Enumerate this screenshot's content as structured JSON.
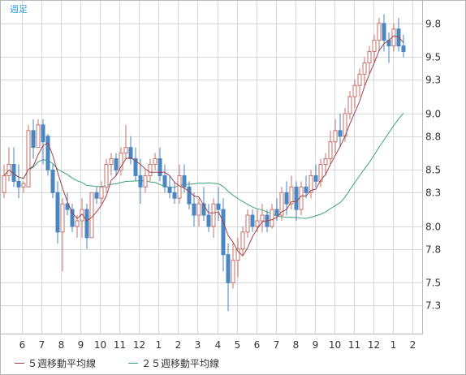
{
  "chart_data": {
    "type": "candlestick",
    "period_label": "週足",
    "y_ticks": [
      7.3,
      7.5,
      7.8,
      8.0,
      8.3,
      8.5,
      8.8,
      9.0,
      9.3,
      9.5,
      9.8
    ],
    "ylim": [
      7.05,
      10.0
    ],
    "x_ticks": [
      "6",
      "7",
      "8",
      "9",
      "10",
      "11",
      "12",
      "1",
      "2",
      "3",
      "4",
      "5",
      "6",
      "7",
      "8",
      "9",
      "10",
      "11",
      "12",
      "1",
      "2"
    ],
    "grid": true,
    "legend_position": "bottom-left",
    "legend": [
      {
        "label": "５週移動平均線",
        "color": "#a2424b"
      },
      {
        "label": "２５週移動平均線",
        "color": "#3aa37a"
      }
    ],
    "colors": {
      "up": "#c4716b",
      "down": "#4a86bf"
    },
    "candles": [
      [
        8.3,
        8.55,
        8.25,
        8.45
      ],
      [
        8.45,
        8.7,
        8.4,
        8.55
      ],
      [
        8.55,
        8.7,
        8.35,
        8.4
      ],
      [
        8.4,
        8.55,
        8.25,
        8.35
      ],
      [
        8.35,
        8.4,
        8.3,
        8.38
      ],
      [
        8.35,
        8.9,
        8.35,
        8.85
      ],
      [
        8.85,
        8.95,
        8.6,
        8.7
      ],
      [
        8.7,
        8.95,
        8.7,
        8.9
      ],
      [
        8.9,
        8.95,
        8.55,
        8.75
      ],
      [
        8.8,
        8.82,
        8.45,
        8.5
      ],
      [
        8.5,
        8.55,
        8.25,
        8.3
      ],
      [
        8.3,
        8.4,
        7.85,
        7.95
      ],
      [
        7.95,
        8.25,
        7.6,
        8.2
      ],
      [
        8.2,
        8.3,
        8.1,
        8.15
      ],
      [
        8.15,
        8.2,
        7.95,
        8.0
      ],
      [
        8.0,
        8.1,
        7.9,
        8.05
      ],
      [
        8.05,
        8.25,
        7.9,
        8.15
      ],
      [
        8.15,
        8.2,
        7.8,
        7.9
      ],
      [
        7.9,
        8.3,
        7.9,
        8.3
      ],
      [
        8.3,
        8.35,
        8.2,
        8.25
      ],
      [
        8.25,
        8.4,
        8.2,
        8.35
      ],
      [
        8.35,
        8.6,
        8.3,
        8.55
      ],
      [
        8.55,
        8.65,
        8.45,
        8.6
      ],
      [
        8.6,
        8.65,
        8.45,
        8.5
      ],
      [
        8.5,
        8.7,
        8.45,
        8.65
      ],
      [
        8.65,
        8.9,
        8.6,
        8.7
      ],
      [
        8.7,
        8.8,
        8.55,
        8.6
      ],
      [
        8.6,
        8.7,
        8.4,
        8.45
      ],
      [
        8.45,
        8.6,
        8.2,
        8.35
      ],
      [
        8.35,
        8.5,
        8.3,
        8.45
      ],
      [
        8.45,
        8.6,
        8.4,
        8.55
      ],
      [
        8.55,
        8.65,
        8.5,
        8.6
      ],
      [
        8.6,
        8.7,
        8.4,
        8.45
      ],
      [
        8.45,
        8.55,
        8.3,
        8.35
      ],
      [
        8.35,
        8.45,
        8.25,
        8.3
      ],
      [
        8.3,
        8.4,
        8.2,
        8.25
      ],
      [
        8.25,
        8.55,
        8.2,
        8.45
      ],
      [
        8.45,
        8.55,
        8.3,
        8.35
      ],
      [
        8.35,
        8.4,
        8.15,
        8.2
      ],
      [
        8.2,
        8.3,
        8.0,
        8.1
      ],
      [
        8.1,
        8.25,
        8.0,
        8.2
      ],
      [
        8.2,
        8.35,
        8.05,
        8.1
      ],
      [
        8.1,
        8.2,
        7.95,
        8.0
      ],
      [
        8.0,
        8.25,
        7.9,
        8.2
      ],
      [
        8.2,
        8.35,
        8.05,
        8.15
      ],
      [
        8.15,
        8.25,
        7.6,
        7.75
      ],
      [
        7.75,
        7.85,
        7.25,
        7.5
      ],
      [
        7.5,
        7.85,
        7.45,
        7.7
      ],
      [
        7.7,
        7.9,
        7.55,
        7.8
      ],
      [
        7.8,
        8.0,
        7.75,
        7.95
      ],
      [
        7.95,
        8.15,
        7.9,
        8.1
      ],
      [
        8.1,
        8.15,
        7.95,
        8.0
      ],
      [
        8.0,
        8.15,
        7.95,
        8.05
      ],
      [
        8.05,
        8.2,
        7.95,
        8.1
      ],
      [
        8.1,
        8.15,
        7.95,
        8.0
      ],
      [
        8.0,
        8.2,
        7.98,
        8.15
      ],
      [
        8.15,
        8.25,
        8.05,
        8.1
      ],
      [
        8.1,
        8.35,
        8.05,
        8.3
      ],
      [
        8.3,
        8.4,
        8.1,
        8.2
      ],
      [
        8.2,
        8.45,
        8.15,
        8.35
      ],
      [
        8.35,
        8.4,
        8.05,
        8.15
      ],
      [
        8.15,
        8.4,
        8.1,
        8.35
      ],
      [
        8.35,
        8.45,
        8.25,
        8.3
      ],
      [
        8.3,
        8.5,
        8.25,
        8.45
      ],
      [
        8.45,
        8.55,
        8.35,
        8.4
      ],
      [
        8.4,
        8.6,
        8.35,
        8.55
      ],
      [
        8.55,
        8.65,
        8.45,
        8.6
      ],
      [
        8.6,
        8.85,
        8.55,
        8.75
      ],
      [
        8.75,
        8.95,
        8.65,
        8.85
      ],
      [
        8.85,
        9.0,
        8.7,
        8.8
      ],
      [
        8.8,
        9.05,
        8.75,
        9.0
      ],
      [
        9.0,
        9.2,
        8.95,
        9.15
      ],
      [
        9.15,
        9.3,
        9.05,
        9.25
      ],
      [
        9.25,
        9.4,
        9.15,
        9.35
      ],
      [
        9.35,
        9.5,
        9.25,
        9.45
      ],
      [
        9.45,
        9.6,
        9.35,
        9.55
      ],
      [
        9.55,
        9.7,
        9.45,
        9.65
      ],
      [
        9.65,
        9.85,
        9.55,
        9.8
      ],
      [
        9.8,
        9.88,
        9.55,
        9.65
      ],
      [
        9.65,
        9.72,
        9.45,
        9.6
      ],
      [
        9.6,
        9.8,
        9.55,
        9.75
      ],
      [
        9.75,
        9.85,
        9.55,
        9.6
      ],
      [
        9.6,
        9.7,
        9.5,
        9.55
      ]
    ]
  }
}
